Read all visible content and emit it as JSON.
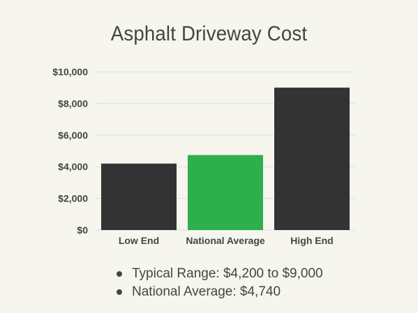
{
  "title": "Asphalt Driveway Cost",
  "chart_data": {
    "type": "bar",
    "title": "Asphalt Driveway Cost",
    "xlabel": "",
    "ylabel": "",
    "categories": [
      "Low End",
      "National Average",
      "High End"
    ],
    "values": [
      4200,
      4740,
      9000
    ],
    "bar_colors": [
      "#333333",
      "#2eaf4d",
      "#333333"
    ],
    "ylim": [
      0,
      10000
    ],
    "yticks": [
      0,
      2000,
      4000,
      6000,
      8000,
      10000
    ],
    "ytick_labels": [
      "$0",
      "$2,000",
      "$4,000",
      "$6,000",
      "$8,000",
      "$10,000"
    ],
    "grid": true,
    "legend": "none"
  },
  "bullets": [
    "Typical Range: $4,200 to $9,000",
    "National Average: $4,740"
  ],
  "colors": {
    "background": "#f6f6ef",
    "text": "#444444",
    "bar_dark": "#333333",
    "bar_accent": "#2eaf4d",
    "grid": "#dedede"
  }
}
